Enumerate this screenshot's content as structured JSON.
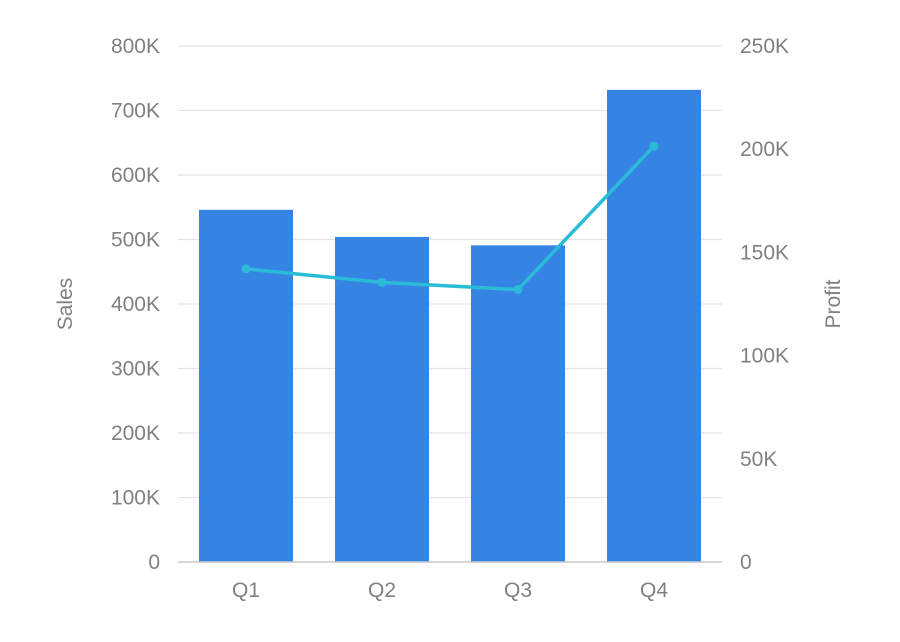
{
  "chart_data": {
    "type": "bar",
    "categories": [
      "Q1",
      "Q2",
      "Q3",
      "Q4"
    ],
    "series": [
      {
        "values": [
          546000,
          504000,
          491000,
          732000
        ],
        "type": "bar",
        "axis": "left",
        "color": "#3584e4"
      },
      {
        "values": [
          142000,
          135500,
          132000,
          201500
        ],
        "type": "line",
        "axis": "right",
        "color": "#2bbad8"
      }
    ],
    "ylabel_left": "Sales",
    "ylabel_right": "Profit",
    "ylim_left": [
      0,
      800000
    ],
    "ylim_right": [
      0,
      250000
    ],
    "yticks_left": [
      "0",
      "100K",
      "200K",
      "300K",
      "400K",
      "500K",
      "600K",
      "700K",
      "800K"
    ],
    "yticks_right": [
      "0",
      "50K",
      "100K",
      "150K",
      "200K",
      "250K"
    ],
    "grid": true,
    "legend": "none"
  }
}
